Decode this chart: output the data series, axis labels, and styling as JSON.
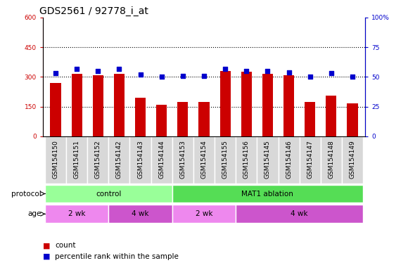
{
  "title": "GDS2561 / 92778_i_at",
  "samples": [
    "GSM154150",
    "GSM154151",
    "GSM154152",
    "GSM154142",
    "GSM154143",
    "GSM154144",
    "GSM154153",
    "GSM154154",
    "GSM154155",
    "GSM154156",
    "GSM154145",
    "GSM154146",
    "GSM154147",
    "GSM154148",
    "GSM154149"
  ],
  "counts": [
    270,
    315,
    310,
    315,
    195,
    160,
    175,
    175,
    330,
    325,
    315,
    310,
    175,
    205,
    165
  ],
  "percentile_ranks": [
    53,
    57,
    55,
    57,
    52,
    50,
    51,
    51,
    57,
    55,
    55,
    54,
    50,
    53,
    50
  ],
  "bar_color": "#cc0000",
  "dot_color": "#0000cc",
  "left_ylim": [
    0,
    600
  ],
  "right_ylim": [
    0,
    100
  ],
  "left_yticks": [
    0,
    150,
    300,
    450,
    600
  ],
  "right_yticks": [
    0,
    25,
    50,
    75,
    100
  ],
  "grid_values": [
    150,
    300,
    450
  ],
  "protocol_groups": [
    {
      "label": "control",
      "start": 0,
      "end": 6,
      "color": "#99ff99"
    },
    {
      "label": "MAT1 ablation",
      "start": 6,
      "end": 15,
      "color": "#55dd55"
    }
  ],
  "age_groups": [
    {
      "label": "2 wk",
      "start": 0,
      "end": 3,
      "color": "#ee88ee"
    },
    {
      "label": "4 wk",
      "start": 3,
      "end": 6,
      "color": "#cc55cc"
    },
    {
      "label": "2 wk",
      "start": 6,
      "end": 9,
      "color": "#ee88ee"
    },
    {
      "label": "4 wk",
      "start": 9,
      "end": 15,
      "color": "#cc55cc"
    }
  ],
  "legend_count_label": "count",
  "legend_pct_label": "percentile rank within the sample",
  "protocol_label": "protocol",
  "age_label": "age",
  "title_fontsize": 10,
  "tick_fontsize": 6.5,
  "label_fontsize": 7.5,
  "annot_fontsize": 7.5,
  "xlim": [
    -0.6,
    14.6
  ]
}
